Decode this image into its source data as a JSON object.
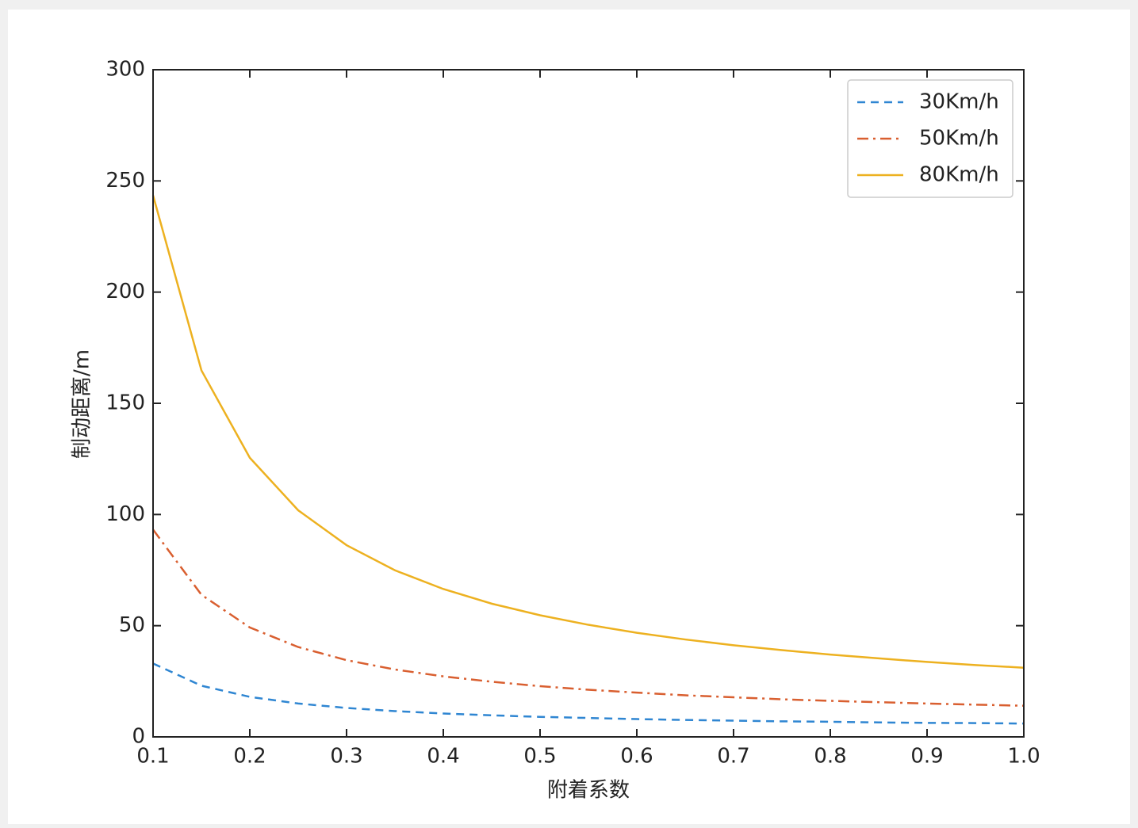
{
  "chart_data": {
    "type": "line",
    "xlabel": "附着系数",
    "ylabel": "制动距离/m",
    "x": [
      0.1,
      0.15,
      0.2,
      0.25,
      0.3,
      0.35,
      0.4,
      0.45,
      0.5,
      0.55,
      0.6,
      0.65,
      0.7,
      0.75,
      0.8,
      0.85,
      0.9,
      0.95,
      1
    ],
    "series": [
      {
        "name": "30Km/h",
        "color": "#2f86d2",
        "linestyle": "dashed",
        "values": [
          33,
          23,
          18,
          15,
          13,
          11.6,
          10.5,
          9.7,
          9,
          8.5,
          8,
          7.6,
          7.3,
          7,
          6.8,
          6.5,
          6.3,
          6.2,
          6
        ]
      },
      {
        "name": "50Km/h",
        "color": "#d95f30",
        "linestyle": "dashdot",
        "values": [
          93.2,
          63.9,
          49.2,
          40.4,
          34.5,
          30.3,
          27.2,
          24.8,
          22.8,
          21.2,
          19.9,
          18.7,
          17.8,
          16.9,
          16.2,
          15.6,
          15,
          14.5,
          14
        ]
      },
      {
        "name": "80Km/h",
        "color": "#edb120",
        "linestyle": "solid",
        "values": [
          243.5,
          164.8,
          125.5,
          101.9,
          86.2,
          74.9,
          66.5,
          59.9,
          54.7,
          50.4,
          46.8,
          43.8,
          41.2,
          39,
          37,
          35.3,
          33.7,
          32.3,
          31.1
        ]
      }
    ],
    "xlim": [
      0.1,
      1
    ],
    "ylim": [
      0,
      300
    ],
    "xticks": [
      0.1,
      0.2,
      0.3,
      0.4,
      0.5,
      0.6,
      0.7,
      0.8,
      0.9,
      {
        "value": 1,
        "label": "1.0"
      }
    ],
    "yticks": [
      0,
      50,
      100,
      150,
      200,
      250,
      300
    ],
    "legend": "upper right",
    "grid": false
  }
}
